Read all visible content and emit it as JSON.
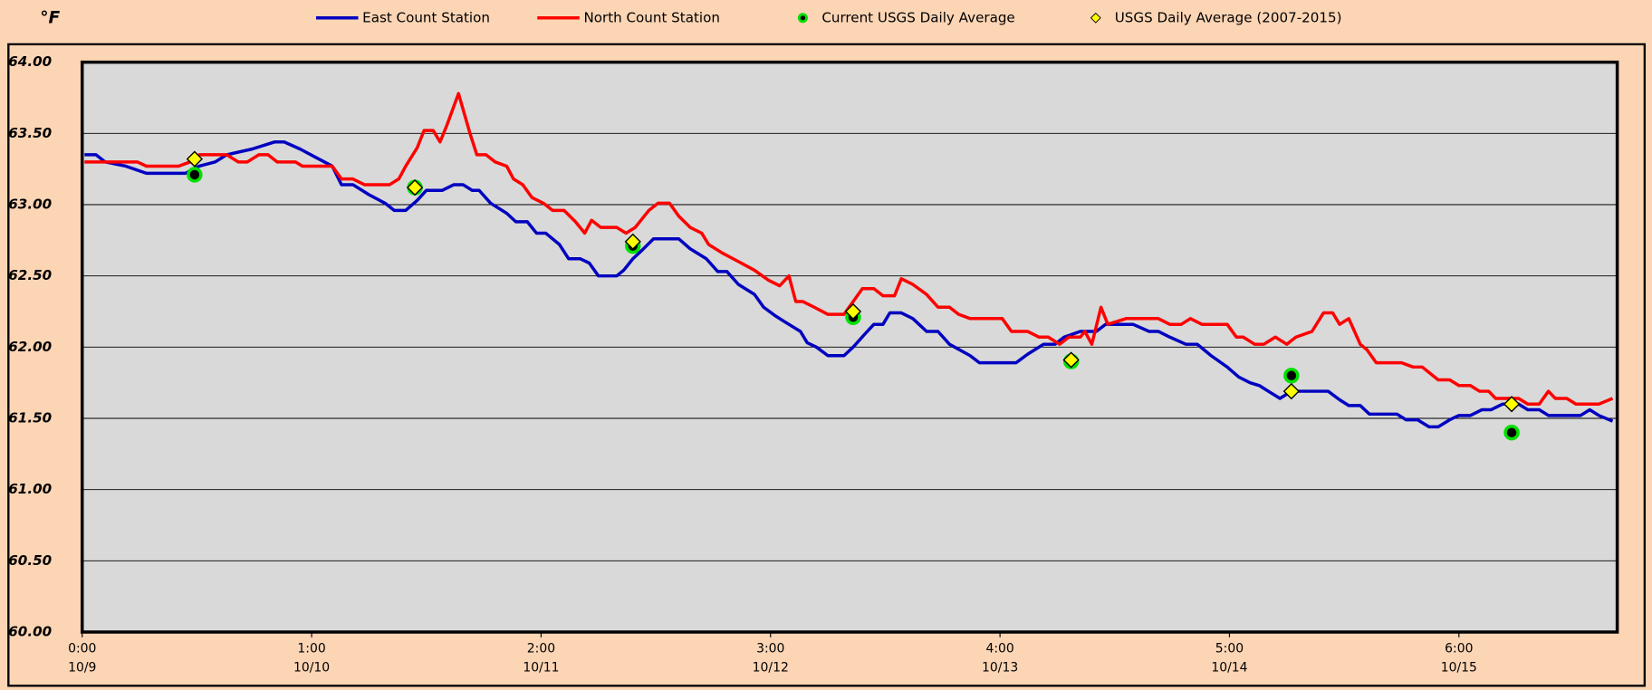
{
  "chart_data": {
    "type": "line",
    "y_label": "°F",
    "ylim": [
      60,
      64
    ],
    "yticks": [
      {
        "value": 60,
        "label": "60.00"
      },
      {
        "value": 60.5,
        "label": "60.50"
      },
      {
        "value": 61,
        "label": "61.00"
      },
      {
        "value": 61.5,
        "label": "61.50"
      },
      {
        "value": 62,
        "label": "62.00"
      },
      {
        "value": 62.5,
        "label": "62.50"
      },
      {
        "value": 63,
        "label": "63.00"
      },
      {
        "value": 63.5,
        "label": "63.50"
      },
      {
        "value": 64,
        "label": "64.00"
      }
    ],
    "xlim": [
      0,
      6.69
    ],
    "xticks": [
      {
        "value": 0,
        "label": [
          "0:00",
          "10/9"
        ]
      },
      {
        "value": 1,
        "label": [
          "1:00",
          "10/10"
        ]
      },
      {
        "value": 2,
        "label": [
          "2:00",
          "10/11"
        ]
      },
      {
        "value": 3,
        "label": [
          "3:00",
          "10/12"
        ]
      },
      {
        "value": 4,
        "label": [
          "4:00",
          "10/13"
        ]
      },
      {
        "value": 5,
        "label": [
          "5:00",
          "10/14"
        ]
      },
      {
        "value": 6,
        "label": [
          "6:00",
          "10/15"
        ]
      }
    ],
    "grid": true,
    "series": [
      {
        "name": "East Count Station",
        "type": "line",
        "color": "#0000c0",
        "x": [
          0.01,
          0.06,
          0.1,
          0.19,
          0.28,
          0.45,
          0.51,
          0.58,
          0.63,
          0.74,
          0.84,
          0.88,
          0.95,
          1.02,
          1.09,
          1.13,
          1.18,
          1.25,
          1.32,
          1.36,
          1.41,
          1.46,
          1.5,
          1.57,
          1.62,
          1.66,
          1.7,
          1.73,
          1.78,
          1.85,
          1.89,
          1.94,
          1.98,
          2.02,
          2.08,
          2.12,
          2.17,
          2.21,
          2.25,
          2.33,
          2.36,
          2.4,
          2.44,
          2.49,
          2.6,
          2.65,
          2.72,
          2.77,
          2.81,
          2.86,
          2.93,
          2.97,
          3.02,
          3.06,
          3.13,
          3.16,
          3.2,
          3.25,
          3.32,
          3.36,
          3.41,
          3.45,
          3.49,
          3.52,
          3.57,
          3.62,
          3.68,
          3.73,
          3.78,
          3.87,
          3.91,
          4.07,
          4.12,
          4.19,
          4.24,
          4.28,
          4.35,
          4.42,
          4.46,
          4.58,
          4.65,
          4.69,
          4.74,
          4.81,
          4.86,
          4.92,
          4.99,
          5.04,
          5.09,
          5.13,
          5.18,
          5.22,
          5.27,
          5.43,
          5.48,
          5.52,
          5.57,
          5.61,
          5.73,
          5.77,
          5.82,
          5.87,
          5.91,
          5.96,
          6.0,
          6.05,
          6.1,
          6.14,
          6.19,
          6.26,
          6.3,
          6.35,
          6.39,
          6.49,
          6.53,
          6.57,
          6.61,
          6.67
        ],
        "values": [
          63.35,
          63.35,
          63.3,
          63.27,
          63.22,
          63.22,
          63.27,
          63.3,
          63.35,
          63.39,
          63.44,
          63.44,
          63.39,
          63.33,
          63.27,
          63.14,
          63.14,
          63.07,
          63.01,
          62.96,
          62.96,
          63.03,
          63.1,
          63.1,
          63.14,
          63.14,
          63.1,
          63.1,
          63.01,
          62.94,
          62.88,
          62.88,
          62.8,
          62.8,
          62.72,
          62.62,
          62.62,
          62.59,
          62.5,
          62.5,
          62.54,
          62.62,
          62.68,
          62.76,
          62.76,
          62.69,
          62.62,
          62.53,
          62.53,
          62.44,
          62.37,
          62.28,
          62.22,
          62.18,
          62.11,
          62.03,
          62.0,
          61.94,
          61.94,
          62.0,
          62.09,
          62.16,
          62.16,
          62.24,
          62.24,
          62.2,
          62.11,
          62.11,
          62.02,
          61.94,
          61.89,
          61.89,
          61.95,
          62.02,
          62.02,
          62.07,
          62.11,
          62.11,
          62.16,
          62.16,
          62.11,
          62.11,
          62.07,
          62.02,
          62.02,
          61.94,
          61.86,
          61.79,
          61.75,
          61.73,
          61.68,
          61.64,
          61.69,
          61.69,
          61.63,
          61.59,
          61.59,
          61.53,
          61.53,
          61.49,
          61.49,
          61.44,
          61.44,
          61.49,
          61.52,
          61.52,
          61.56,
          61.56,
          61.6,
          61.6,
          61.56,
          61.56,
          61.52,
          61.52,
          61.52,
          61.56,
          61.52,
          61.48
        ]
      },
      {
        "name": "North Count Station",
        "type": "line",
        "color": "#ff0000",
        "x": [
          0.01,
          0.24,
          0.28,
          0.42,
          0.47,
          0.51,
          0.63,
          0.68,
          0.72,
          0.77,
          0.81,
          0.85,
          0.93,
          0.96,
          1.09,
          1.13,
          1.18,
          1.23,
          1.34,
          1.38,
          1.41,
          1.46,
          1.49,
          1.53,
          1.56,
          1.59,
          1.64,
          1.69,
          1.72,
          1.76,
          1.8,
          1.85,
          1.88,
          1.92,
          1.96,
          2.01,
          2.05,
          2.1,
          2.15,
          2.19,
          2.22,
          2.26,
          2.33,
          2.37,
          2.41,
          2.47,
          2.51,
          2.56,
          2.6,
          2.65,
          2.7,
          2.73,
          2.79,
          2.86,
          2.93,
          2.99,
          3.04,
          3.08,
          3.11,
          3.14,
          3.19,
          3.25,
          3.32,
          3.36,
          3.4,
          3.45,
          3.49,
          3.54,
          3.57,
          3.62,
          3.68,
          3.73,
          3.78,
          3.82,
          3.87,
          4.01,
          4.05,
          4.12,
          4.17,
          4.21,
          4.26,
          4.3,
          4.35,
          4.37,
          4.4,
          4.44,
          4.47,
          4.55,
          4.59,
          4.69,
          4.74,
          4.79,
          4.83,
          4.88,
          4.99,
          5.03,
          5.06,
          5.11,
          5.15,
          5.2,
          5.25,
          5.29,
          5.36,
          5.41,
          5.45,
          5.48,
          5.52,
          5.57,
          5.6,
          5.64,
          5.73,
          5.75,
          5.8,
          5.84,
          5.91,
          5.96,
          6.0,
          6.05,
          6.09,
          6.13,
          6.16,
          6.26,
          6.3,
          6.35,
          6.39,
          6.42,
          6.47,
          6.51,
          6.61,
          6.67
        ],
        "values": [
          63.3,
          63.3,
          63.27,
          63.27,
          63.3,
          63.35,
          63.35,
          63.3,
          63.3,
          63.35,
          63.35,
          63.3,
          63.3,
          63.27,
          63.27,
          63.18,
          63.18,
          63.14,
          63.14,
          63.18,
          63.27,
          63.4,
          63.52,
          63.52,
          63.44,
          63.56,
          63.78,
          63.5,
          63.35,
          63.35,
          63.3,
          63.27,
          63.18,
          63.14,
          63.05,
          63.01,
          62.96,
          62.96,
          62.88,
          62.8,
          62.89,
          62.84,
          62.84,
          62.8,
          62.84,
          62.96,
          63.01,
          63.01,
          62.92,
          62.84,
          62.8,
          62.72,
          62.66,
          62.6,
          62.54,
          62.47,
          62.43,
          62.5,
          62.32,
          62.32,
          62.28,
          62.23,
          62.23,
          62.32,
          62.41,
          62.41,
          62.36,
          62.36,
          62.48,
          62.44,
          62.37,
          62.28,
          62.28,
          62.23,
          62.2,
          62.2,
          62.11,
          62.11,
          62.07,
          62.07,
          62.02,
          62.07,
          62.07,
          62.11,
          62.02,
          62.28,
          62.16,
          62.2,
          62.2,
          62.2,
          62.16,
          62.16,
          62.2,
          62.16,
          62.16,
          62.07,
          62.07,
          62.02,
          62.02,
          62.07,
          62.02,
          62.07,
          62.11,
          62.24,
          62.24,
          62.16,
          62.2,
          62.02,
          61.98,
          61.89,
          61.89,
          61.89,
          61.86,
          61.86,
          61.77,
          61.77,
          61.73,
          61.73,
          61.69,
          61.69,
          61.64,
          61.64,
          61.6,
          61.6,
          61.69,
          61.64,
          61.64,
          61.6,
          61.6,
          61.64
        ]
      },
      {
        "name": "Current USGS Daily Average",
        "type": "scatter",
        "marker": "circle",
        "color": "#00e000",
        "x": [
          0.49,
          1.45,
          2.4,
          3.36,
          4.31,
          5.27,
          6.23
        ],
        "values": [
          63.21,
          63.12,
          62.71,
          62.21,
          61.9,
          61.8,
          61.4
        ]
      },
      {
        "name": "USGS Daily Average (2007-2015)",
        "type": "scatter",
        "marker": "diamond",
        "color": "#ffff00",
        "x": [
          0.49,
          1.45,
          2.4,
          3.36,
          4.31,
          5.27,
          6.23
        ],
        "values": [
          63.32,
          63.12,
          62.74,
          62.25,
          61.91,
          61.69,
          61.6
        ]
      }
    ]
  }
}
